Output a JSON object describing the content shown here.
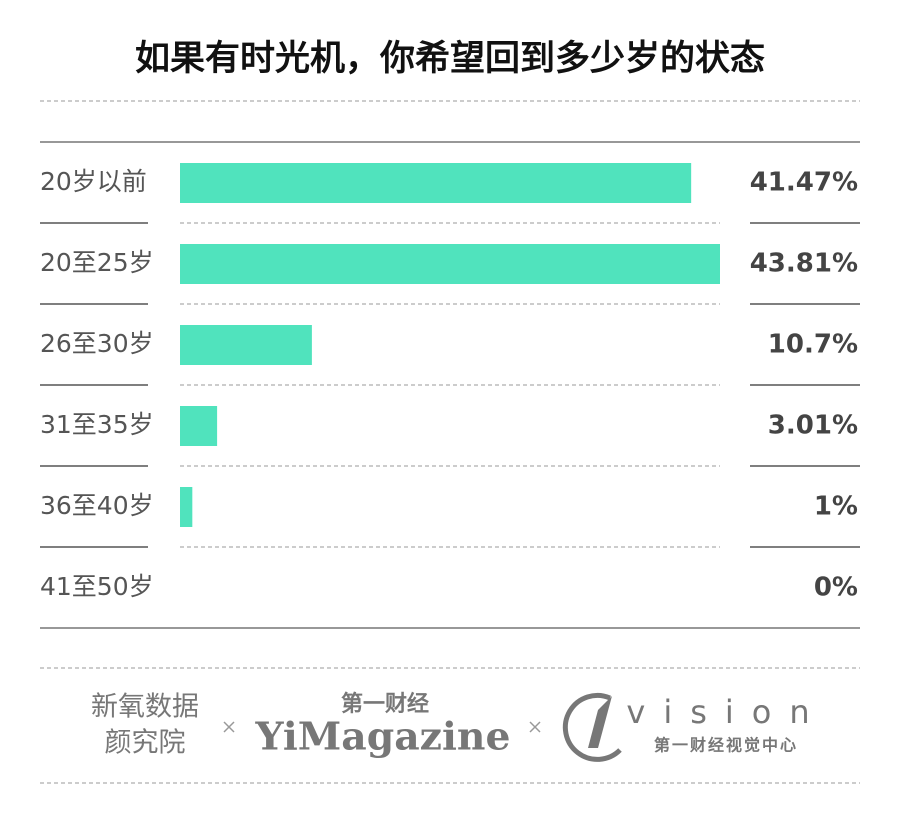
{
  "chart_data": {
    "type": "bar",
    "orientation": "horizontal",
    "title": "如果有时光机，你希望回到多少岁的状态",
    "categories": [
      "20岁以前",
      "20至25岁",
      "26至30岁",
      "31至35岁",
      "36至40岁",
      "41至50岁"
    ],
    "values": [
      41.47,
      43.81,
      10.7,
      3.01,
      1,
      0
    ],
    "value_labels": [
      "41.47%",
      "43.81%",
      "10.7%",
      "3.01%",
      "1%",
      "0%"
    ],
    "color": "#50e3bd"
  },
  "footer": {
    "logo1_line1": "新氧数据",
    "logo1_line2": "颜究院",
    "logo2_top": "第一财经",
    "logo2_main": "YiMagazine",
    "logo3_main": "vision",
    "logo3_sub": "第一财经视觉中心"
  }
}
